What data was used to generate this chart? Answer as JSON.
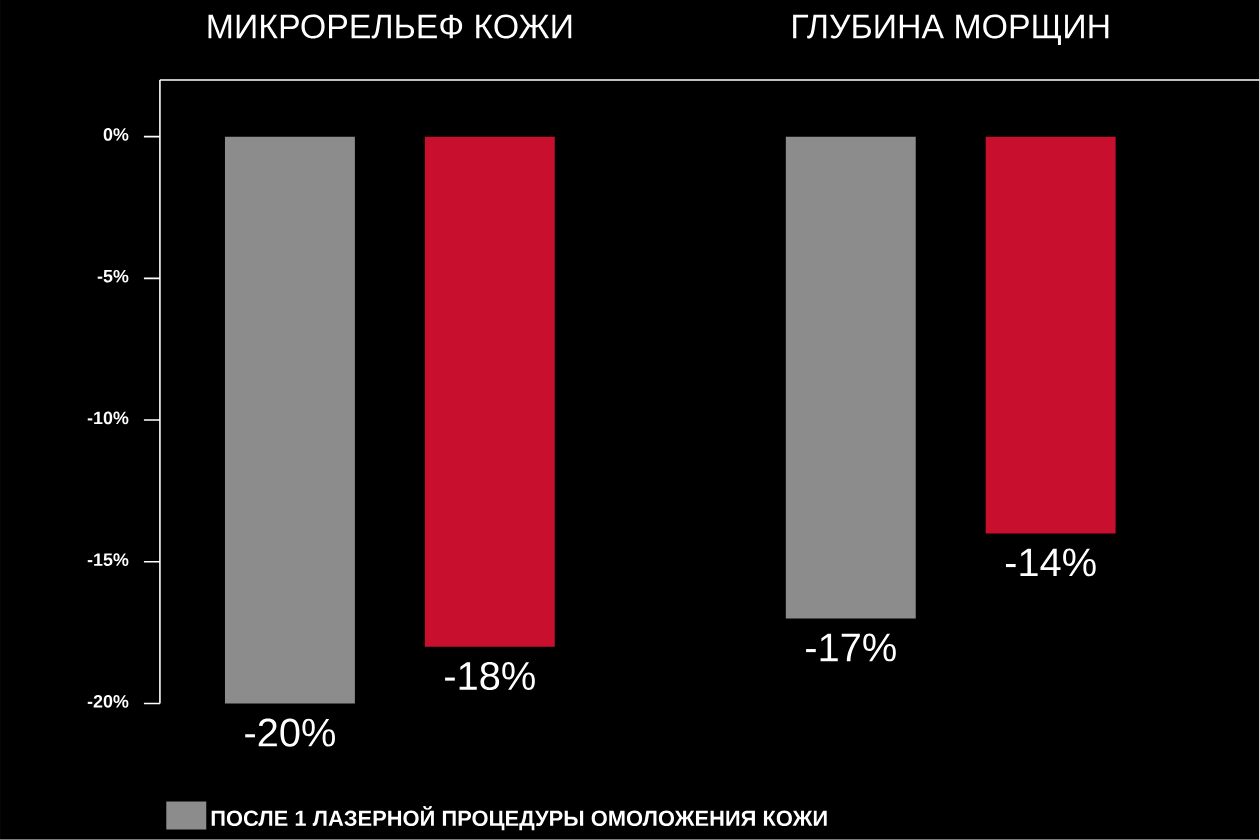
{
  "chart_data": {
    "type": "bar",
    "categories": [
      "МИКРОРЕЛЬЕФ КОЖИ",
      "ГЛУБИНА МОРЩИН"
    ],
    "series": [
      {
        "name": "ПОСЛЕ 1 ЛАЗЕРНОЙ ПРОЦЕДУРЫ ОМОЛОЖЕНИЯ КОЖИ",
        "color": "#8c8c8c",
        "values": [
          -20,
          -17
        ],
        "value_labels": [
          "-20%",
          "-17%"
        ]
      },
      {
        "color": "#c8102e",
        "values": [
          -18,
          -14
        ],
        "value_labels": [
          "-18%",
          "-14%"
        ]
      }
    ],
    "ylim": [
      -20,
      2
    ],
    "yticks": [
      {
        "value": 0,
        "label": "0%"
      },
      {
        "value": -5,
        "label": "-5%"
      },
      {
        "value": -10,
        "label": "-10%"
      },
      {
        "value": -15,
        "label": "-15%"
      },
      {
        "value": -20,
        "label": "-20%"
      }
    ],
    "legend": "bottom"
  }
}
